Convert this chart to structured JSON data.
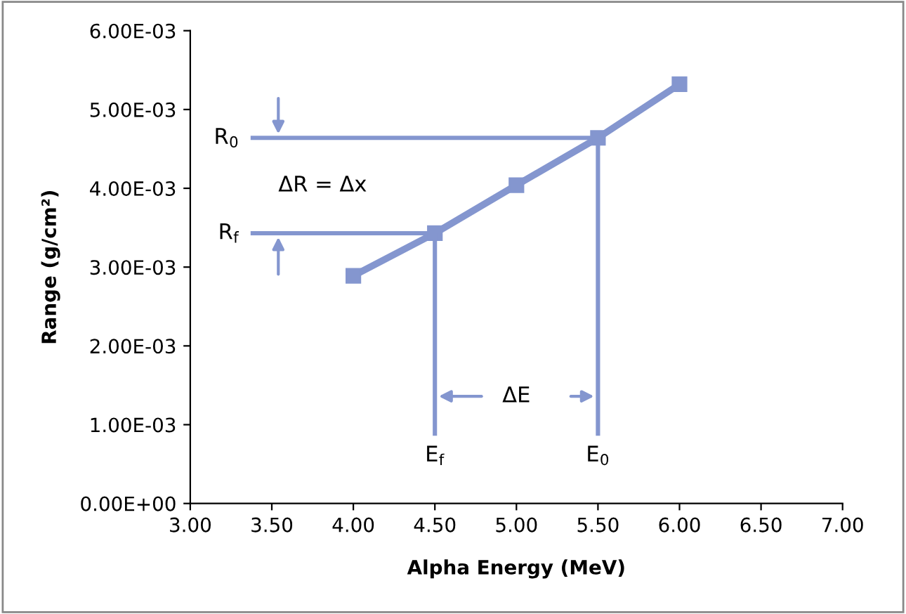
{
  "chart_data": {
    "type": "line",
    "xlabel": "Alpha Energy (MeV)",
    "ylabel": "Range (g/cm²)",
    "xlim": [
      3.0,
      7.0
    ],
    "xticks": [
      {
        "value": 3.0,
        "label": "3.00"
      },
      {
        "value": 3.5,
        "label": "3.50"
      },
      {
        "value": 4.0,
        "label": "4.00"
      },
      {
        "value": 4.5,
        "label": "4.50"
      },
      {
        "value": 5.0,
        "label": "5.00"
      },
      {
        "value": 5.5,
        "label": "5.50"
      },
      {
        "value": 6.0,
        "label": "6.00"
      },
      {
        "value": 6.5,
        "label": "6.50"
      },
      {
        "value": 7.0,
        "label": "7.00"
      }
    ],
    "ylim": [
      0,
      0.006
    ],
    "yticks": [
      {
        "value": 0,
        "label": "0.00E+00"
      },
      {
        "value": 0.001,
        "label": "1.00E-03"
      },
      {
        "value": 0.002,
        "label": "2.00E-03"
      },
      {
        "value": 0.003,
        "label": "3.00E-03"
      },
      {
        "value": 0.004,
        "label": "4.00E-03"
      },
      {
        "value": 0.005,
        "label": "5.00E-03"
      },
      {
        "value": 0.006,
        "label": "6.00E-03"
      }
    ],
    "grid": false,
    "marker": "square",
    "line_style": "solid",
    "series": [
      {
        "color": "#8496cf",
        "x": [
          4.0,
          4.5,
          5.0,
          5.5,
          6.0
        ],
        "values": [
          0.00289,
          0.00343,
          0.00404,
          0.00464,
          0.00532
        ]
      },
      {
        "color": "#8496cf",
        "marker": "none",
        "x": [
          3.37,
          5.5
        ],
        "values": [
          0.00464,
          0.00464
        ]
      },
      {
        "color": "#8496cf",
        "marker": "none",
        "x": [
          3.37,
          4.5
        ],
        "values": [
          0.00343,
          0.00343
        ]
      },
      {
        "color": "#8496cf",
        "marker": "none",
        "x": [
          4.5,
          4.5
        ],
        "values": [
          0.00086,
          0.00343
        ]
      },
      {
        "color": "#8496cf",
        "marker": "none",
        "x": [
          5.5,
          5.5
        ],
        "values": [
          0.00086,
          0.00464
        ]
      }
    ],
    "annotations": [
      {
        "text": "R$_{0}$",
        "x": 3.37,
        "y": 0.00464
      },
      {
        "text": "R$_{f}$",
        "x": 3.37,
        "y": 0.00343
      },
      {
        "text": "E$_{f}$",
        "x": 4.5,
        "y": 0.00086
      },
      {
        "text": "E$_{0}$",
        "x": 5.5,
        "y": 0.00086
      },
      "ΔR = Δx",
      "ΔE"
    ]
  }
}
